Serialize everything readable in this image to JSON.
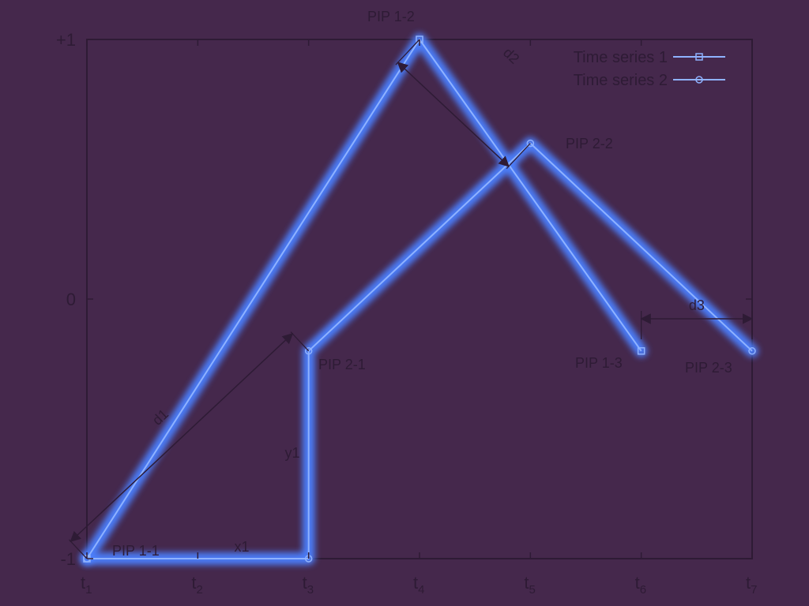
{
  "chart_data": {
    "type": "line",
    "title": "",
    "xlabel": "",
    "ylabel": "",
    "x_categories": [
      "t1",
      "t2",
      "t3",
      "t4",
      "t5",
      "t6",
      "t7"
    ],
    "x_tick_labels": [
      {
        "base": "t",
        "sub": "1"
      },
      {
        "base": "t",
        "sub": "2"
      },
      {
        "base": "t",
        "sub": "3"
      },
      {
        "base": "t",
        "sub": "4"
      },
      {
        "base": "t",
        "sub": "5"
      },
      {
        "base": "t",
        "sub": "6"
      },
      {
        "base": "t",
        "sub": "7"
      }
    ],
    "y_ticks": [
      {
        "value": 1,
        "label": "+1"
      },
      {
        "value": 0,
        "label": "0"
      },
      {
        "value": -1,
        "label": "-1"
      }
    ],
    "xlim": [
      1,
      7
    ],
    "ylim": [
      -1,
      1
    ],
    "grid": false,
    "legend": {
      "placement": "top-right"
    },
    "series": [
      {
        "name": "Time series 1",
        "marker": "square",
        "x": [
          1,
          4,
          6
        ],
        "y": [
          -1,
          1,
          -0.2
        ]
      },
      {
        "name": "Time series 2",
        "marker": "circle",
        "x": [
          1,
          3,
          3,
          5,
          7
        ],
        "y": [
          -1,
          -1,
          -0.2,
          0.6,
          -0.2
        ]
      }
    ],
    "annotations": {
      "pips": [
        {
          "text": "PIP 1-1",
          "x": 1,
          "y": -1
        },
        {
          "text": "PIP 1-2",
          "x": 4,
          "y": 1
        },
        {
          "text": "PIP 1-3",
          "x": 6,
          "y": -0.2
        },
        {
          "text": "PIP 2-1",
          "x": 3,
          "y": -0.2
        },
        {
          "text": "PIP 2-2",
          "x": 5,
          "y": 0.6
        },
        {
          "text": "PIP 2-3",
          "x": 7,
          "y": -0.2
        }
      ],
      "measures": [
        {
          "text": "d1",
          "kind": "diagonal-arrow",
          "from": {
            "x": 1,
            "y": -1
          },
          "to": {
            "x": 3,
            "y": -0.2
          }
        },
        {
          "text": "d2",
          "kind": "diagonal-arrow",
          "from": {
            "x": 4,
            "y": 1
          },
          "to": {
            "x": 5,
            "y": 0.6
          }
        },
        {
          "text": "d3",
          "kind": "horizontal-arrow",
          "from": {
            "x": 6,
            "y": -0.2
          },
          "to": {
            "x": 7,
            "y": -0.2
          }
        },
        {
          "text": "x1",
          "kind": "label",
          "x": 2.4,
          "y": -1
        },
        {
          "text": "y1",
          "kind": "label",
          "x": 3,
          "y": -0.6
        }
      ]
    }
  },
  "colors": {
    "background": "#45284c",
    "frame": "#2e1b35",
    "glow": "#4c80ff",
    "line_core": "#8fb2ff",
    "text": "#2e1b35"
  }
}
